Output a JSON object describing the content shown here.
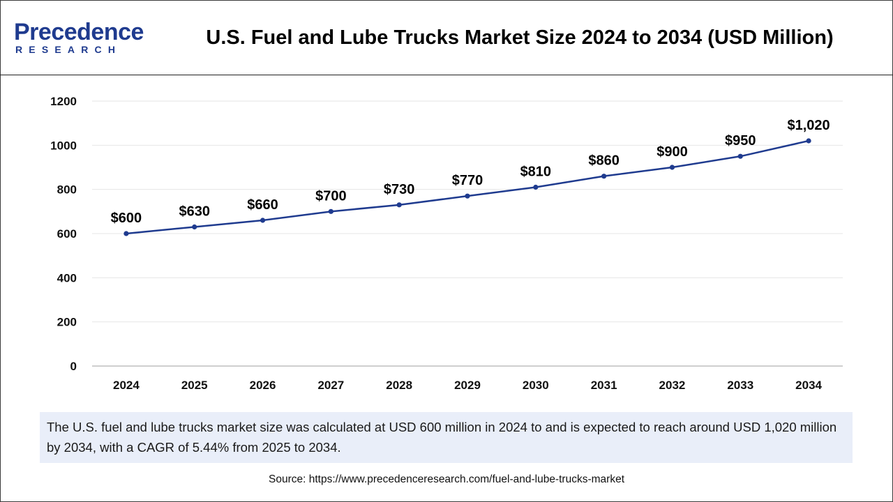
{
  "header": {
    "logo_main": "Precedence",
    "logo_sub": "RESEARCH",
    "title": "U.S. Fuel and Lube Trucks Market Size 2024 to 2034 (USD Million)"
  },
  "chart_data": {
    "type": "line",
    "title": "U.S. Fuel and Lube Trucks Market Size 2024 to 2034 (USD Million)",
    "xlabel": "",
    "ylabel": "",
    "categories": [
      "2024",
      "2025",
      "2026",
      "2027",
      "2028",
      "2029",
      "2030",
      "2031",
      "2032",
      "2033",
      "2034"
    ],
    "values": [
      600,
      630,
      660,
      700,
      730,
      770,
      810,
      860,
      900,
      950,
      1020
    ],
    "data_labels": [
      "$600",
      "$630",
      "$660",
      "$700",
      "$730",
      "$770",
      "$810",
      "$860",
      "$900",
      "$950",
      "$1,020"
    ],
    "ylim": [
      0,
      1200
    ],
    "yticks": [
      0,
      200,
      400,
      600,
      800,
      1000,
      1200
    ],
    "grid": true,
    "legend": "none",
    "line_color": "#1f3b8f"
  },
  "summary": {
    "text": "The U.S. fuel and lube trucks market size was calculated at USD 600 million in 2024 to and is expected to reach around USD 1,020 million by 2034, with a CAGR of 5.44% from 2025 to 2034."
  },
  "source": {
    "text": "Source: https://www.precedenceresearch.com/fuel-and-lube-trucks-market"
  }
}
